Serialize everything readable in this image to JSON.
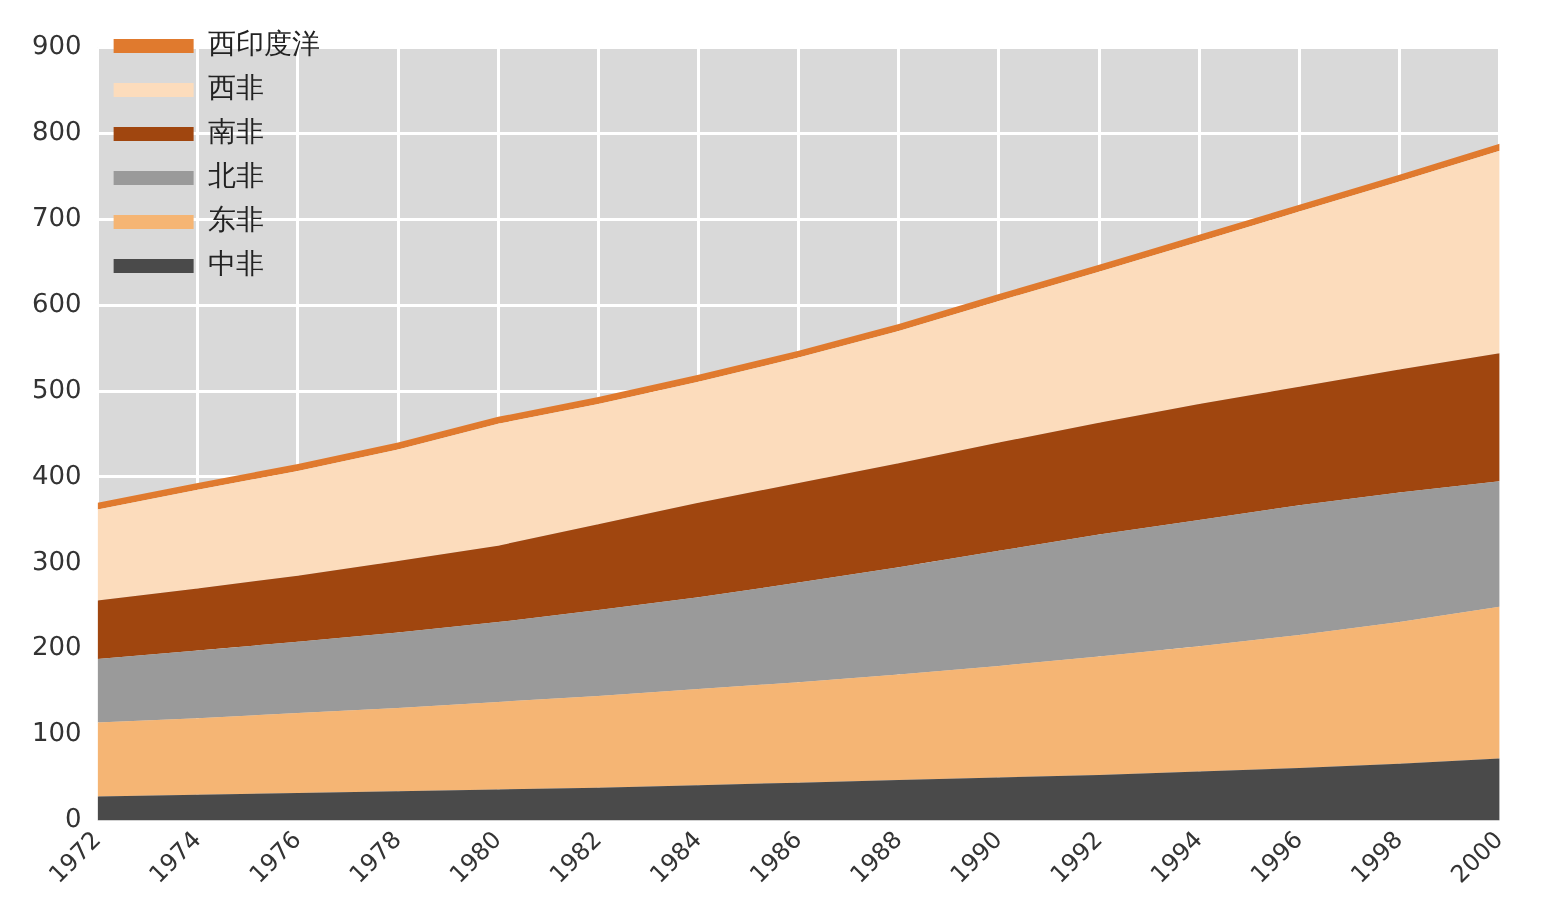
{
  "chart_data": {
    "type": "area",
    "stacked": true,
    "legend": "top left",
    "grid": true,
    "marker": "none",
    "x": [
      1972,
      1974,
      1976,
      1978,
      1980,
      1982,
      1984,
      1986,
      1988,
      1990,
      1992,
      1994,
      1996,
      1998,
      2000
    ],
    "xlim": [
      1972,
      2000
    ],
    "xticks": [
      1972,
      1974,
      1976,
      1978,
      1980,
      1982,
      1984,
      1986,
      1988,
      1990,
      1992,
      1994,
      1996,
      1998,
      2000
    ],
    "ylim": [
      0,
      900
    ],
    "yticks": [
      0,
      100,
      200,
      300,
      400,
      500,
      600,
      700,
      800,
      900
    ],
    "series": [
      {
        "name": "中非",
        "color": "#4a4a4a",
        "values": [
          28,
          30,
          32,
          34,
          36,
          38,
          41,
          44,
          47,
          50,
          53,
          57,
          61,
          66,
          72
        ]
      },
      {
        "name": "东非",
        "color": "#f5b574",
        "values": [
          86,
          89,
          93,
          97,
          102,
          107,
          112,
          117,
          123,
          130,
          138,
          146,
          155,
          165,
          177
        ]
      },
      {
        "name": "北非",
        "color": "#9a9a9a",
        "values": [
          74,
          79,
          83,
          88,
          93,
          100,
          107,
          116,
          125,
          134,
          142,
          147,
          151,
          151,
          146
        ]
      },
      {
        "name": "南非",
        "color": "#a0460f",
        "values": [
          68,
          72,
          77,
          83,
          89,
          100,
          110,
          116,
          121,
          126,
          130,
          135,
          138,
          143,
          149
        ]
      },
      {
        "name": "西非",
        "color": "#fcdcbc",
        "values": [
          106,
          115,
          122,
          130,
          142,
          140,
          141,
          146,
          154,
          165,
          176,
          189,
          204,
          219,
          236
        ]
      },
      {
        "name": "西印度洋",
        "color": "#e07a2e",
        "values": [
          8,
          8,
          8,
          8,
          8,
          8,
          8,
          8,
          8,
          8,
          8,
          8,
          8,
          8,
          8
        ]
      }
    ]
  }
}
